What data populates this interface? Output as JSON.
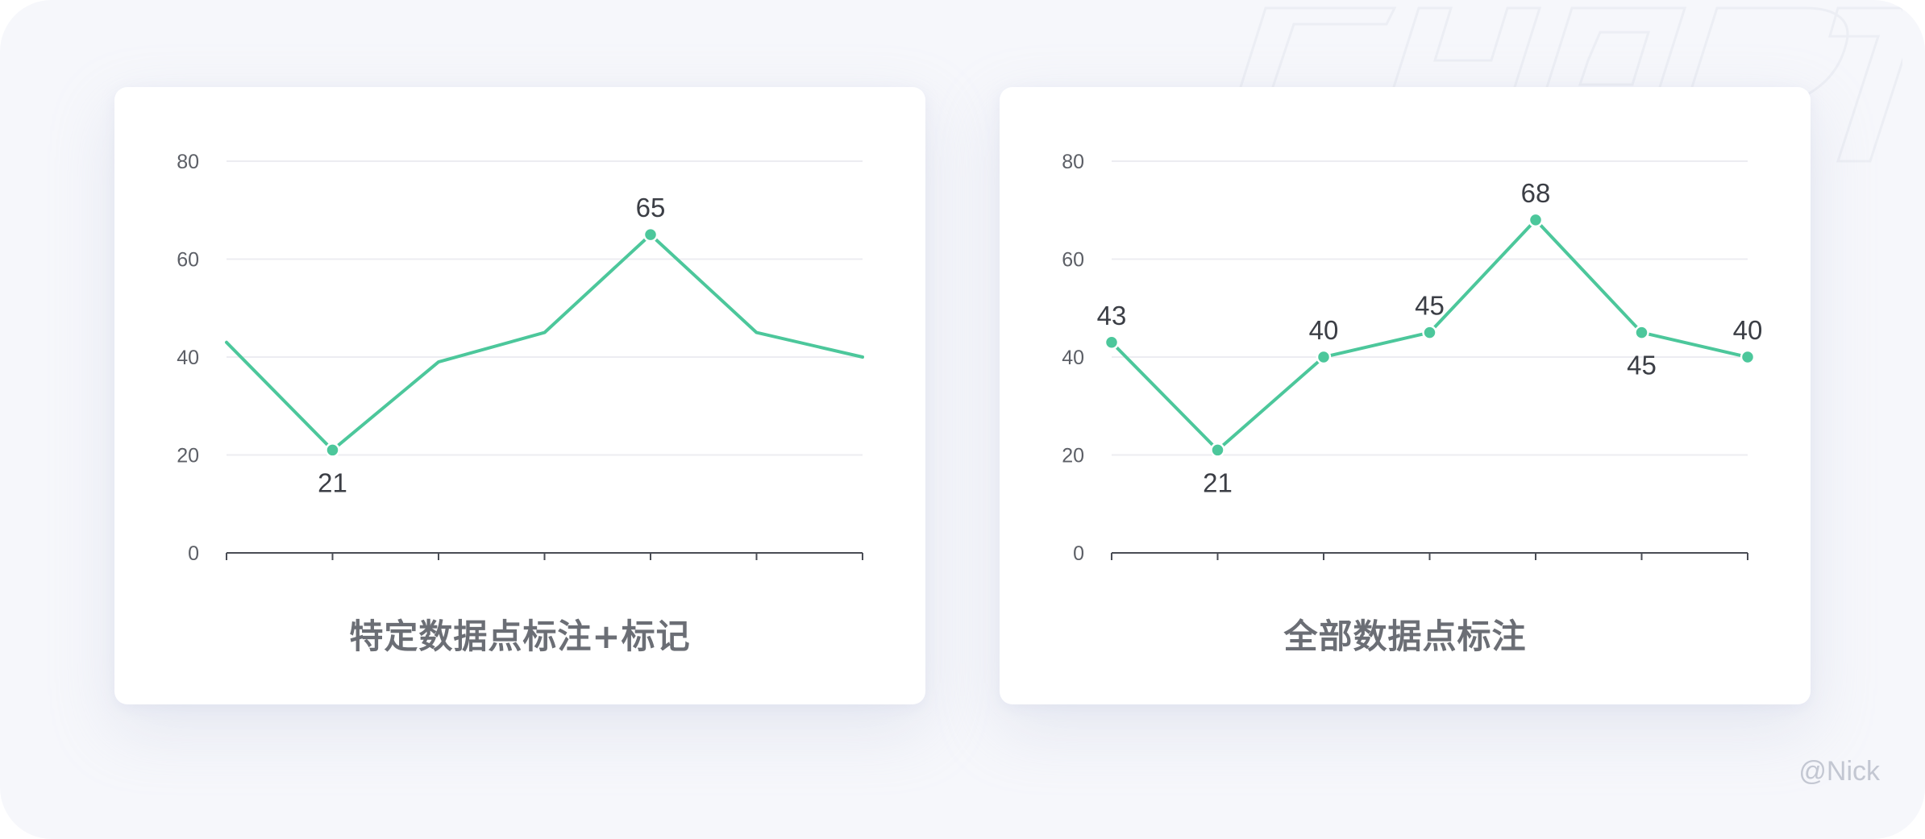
{
  "credit": "@Nick",
  "colors": {
    "line": "#4cc79b",
    "grid": "#ececf1",
    "axis": "#4a4d55",
    "card": "#ffffff",
    "background": "#f6f7fb"
  },
  "chart_data": [
    {
      "type": "line",
      "title": "特定数据点标注+标记",
      "categories": [
        "",
        "",
        "",
        "",
        "",
        "",
        ""
      ],
      "values": [
        43,
        21,
        39,
        45,
        65,
        45,
        40
      ],
      "labeled_points": [
        1,
        4
      ],
      "y_ticks": [
        0,
        20,
        40,
        60,
        80
      ],
      "ylim": [
        0,
        80
      ],
      "grid": true,
      "markers": "labeled-only"
    },
    {
      "type": "line",
      "title": "全部数据点标注",
      "categories": [
        "",
        "",
        "",
        "",
        "",
        "",
        ""
      ],
      "values": [
        43,
        21,
        40,
        45,
        68,
        45,
        40
      ],
      "labeled_points": [
        0,
        1,
        2,
        3,
        4,
        5,
        6
      ],
      "label_position": [
        "above",
        "below",
        "above",
        "above",
        "above",
        "below",
        "above"
      ],
      "y_ticks": [
        0,
        20,
        40,
        60,
        80
      ],
      "ylim": [
        0,
        80
      ],
      "grid": true,
      "markers": "all"
    }
  ]
}
